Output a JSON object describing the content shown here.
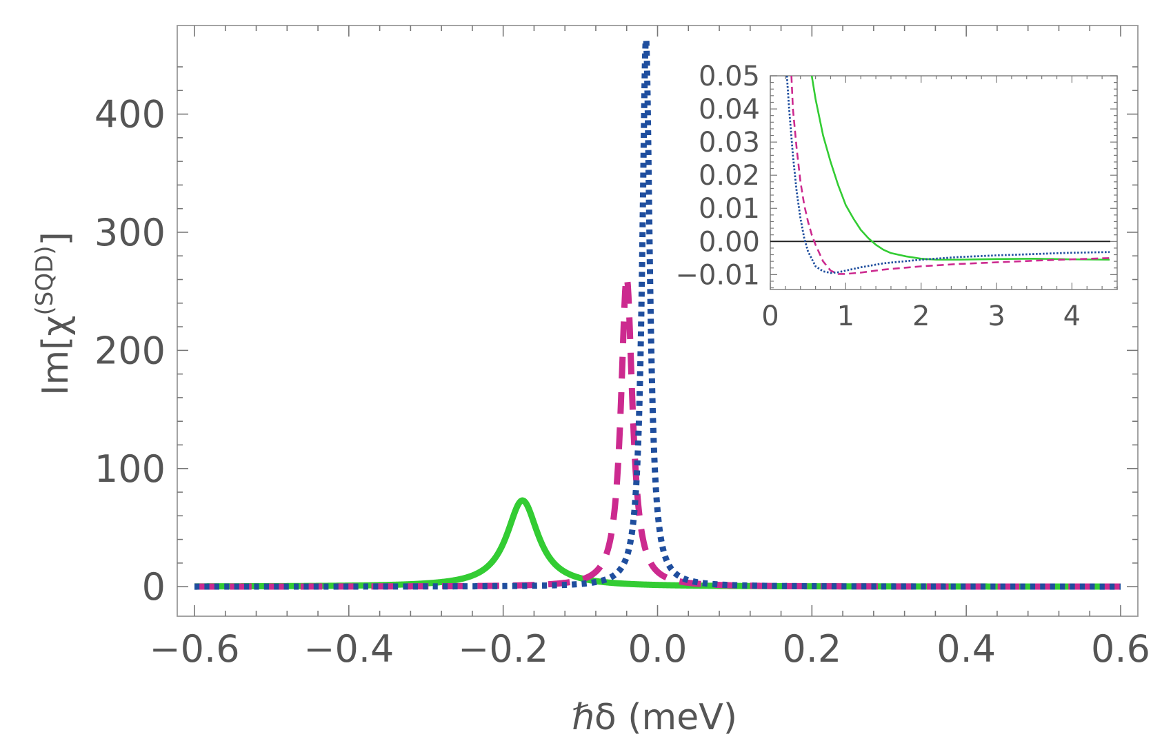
{
  "chart_data": [
    {
      "type": "line",
      "panel": "main",
      "title": "",
      "xlabel": "ℏδ (meV)",
      "ylabel": "Im[χ(SQD)]",
      "ylabel_parts": {
        "pre": "Im[χ",
        "sup": "(SQD)",
        "post": "]"
      },
      "xlim": [
        -0.6,
        0.6
      ],
      "ylim": [
        -25,
        475
      ],
      "xticks": [
        -0.6,
        -0.4,
        -0.2,
        0.0,
        0.2,
        0.4,
        0.6
      ],
      "xtick_labels": [
        "−0.6",
        "−0.4",
        "−0.2",
        "0.0",
        "0.2",
        "0.4",
        "0.6"
      ],
      "yticks": [
        0,
        100,
        200,
        300,
        400
      ],
      "ytick_labels": [
        "0",
        "100",
        "200",
        "300",
        "400"
      ],
      "grid": false,
      "legend": "none",
      "series": [
        {
          "name": "solid green",
          "style": "solid",
          "color": "#33cc33",
          "peak_x": -0.175,
          "peak_y": 73,
          "half_width": 0.025
        },
        {
          "name": "dashed magenta",
          "style": "dashed",
          "color": "#cc2a8f",
          "peak_x": -0.04,
          "peak_y": 262,
          "half_width": 0.009
        },
        {
          "name": "dotted blue",
          "style": "dotted",
          "color": "#1f4e9e",
          "peak_x": -0.015,
          "peak_y": 465,
          "half_width": 0.006
        }
      ]
    },
    {
      "type": "line",
      "panel": "inset",
      "xlim": [
        0,
        4.6
      ],
      "ylim": [
        -0.0145,
        0.05
      ],
      "xticks": [
        0,
        1,
        2,
        3,
        4
      ],
      "xtick_labels": [
        "0",
        "1",
        "2",
        "3",
        "4"
      ],
      "yticks": [
        -0.01,
        0.0,
        0.01,
        0.02,
        0.03,
        0.04,
        0.05
      ],
      "ytick_labels": [
        "−0.01",
        "0.00",
        "0.01",
        "0.02",
        "0.03",
        "0.04",
        "0.05"
      ],
      "zero_line": true,
      "series": [
        {
          "name": "solid green",
          "style": "solid",
          "color": "#33cc33",
          "x": [
            0.55,
            0.6,
            0.7,
            0.8,
            0.9,
            1.0,
            1.1,
            1.2,
            1.3,
            1.4,
            1.5,
            1.6,
            1.8,
            2.0,
            2.2,
            2.5,
            3.0,
            3.5,
            4.0,
            4.5
          ],
          "y": [
            0.05,
            0.043,
            0.032,
            0.024,
            0.017,
            0.011,
            0.007,
            0.0035,
            0.001,
            -0.001,
            -0.0025,
            -0.0035,
            -0.0045,
            -0.0052,
            -0.0055,
            -0.0055,
            -0.0053,
            -0.0052,
            -0.0054,
            -0.0055
          ]
        },
        {
          "name": "dashed magenta",
          "style": "dashed",
          "color": "#cc2a8f",
          "x": [
            0.28,
            0.3,
            0.35,
            0.4,
            0.45,
            0.5,
            0.55,
            0.6,
            0.7,
            0.8,
            0.9,
            1.0,
            1.2,
            1.5,
            2.0,
            2.5,
            3.0,
            3.5,
            4.0,
            4.5
          ],
          "y": [
            0.05,
            0.04,
            0.028,
            0.018,
            0.011,
            0.006,
            0.002,
            -0.001,
            -0.006,
            -0.0088,
            -0.0098,
            -0.0098,
            -0.0094,
            -0.0085,
            -0.0075,
            -0.0068,
            -0.0063,
            -0.0058,
            -0.0054,
            -0.005
          ]
        },
        {
          "name": "dotted blue",
          "style": "dotted",
          "color": "#1f4e9e",
          "x": [
            0.22,
            0.25,
            0.3,
            0.35,
            0.4,
            0.45,
            0.5,
            0.6,
            0.7,
            0.8,
            0.9,
            1.0,
            1.2,
            1.5,
            2.0,
            2.5,
            3.0,
            3.5,
            4.0,
            4.5
          ],
          "y": [
            0.05,
            0.04,
            0.026,
            0.015,
            0.007,
            0.001,
            -0.003,
            -0.0075,
            -0.009,
            -0.0095,
            -0.0093,
            -0.0088,
            -0.0078,
            -0.0066,
            -0.0055,
            -0.0047,
            -0.0042,
            -0.0038,
            -0.0034,
            -0.0032
          ]
        }
      ]
    }
  ]
}
